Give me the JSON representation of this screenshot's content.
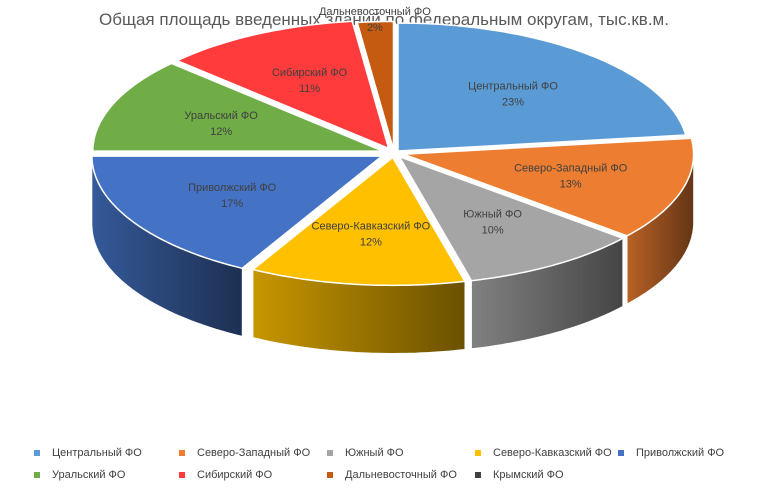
{
  "chart_data": {
    "type": "pie",
    "title": "Общая площадь введенных зданий по федеральным округам, тыс.кв.м.",
    "slices": [
      {
        "name": "Центральный ФО",
        "percent": 23,
        "label_pct": "23%",
        "color": "#5B9BD5"
      },
      {
        "name": "Северо-Западный ФО",
        "percent": 13,
        "label_pct": "13%",
        "color": "#ED7D31"
      },
      {
        "name": "Южный ФО",
        "percent": 10,
        "label_pct": "10%",
        "color": "#A5A5A5"
      },
      {
        "name": "Северо-Кавказский ФО",
        "percent": 12,
        "label_pct": "12%",
        "color": "#FFC000"
      },
      {
        "name": "Приволжский ФО",
        "percent": 17,
        "label_pct": "17%",
        "color": "#4472C4"
      },
      {
        "name": "Уральский ФО",
        "percent": 12,
        "label_pct": "12%",
        "color": "#70AD47"
      },
      {
        "name": "Сибирский ФО",
        "percent": 11,
        "label_pct": "11%",
        "color": "#FF3B3B"
      },
      {
        "name": "Дальневосточный ФО",
        "percent": 2,
        "label_pct": "2%",
        "color": "#C55A11"
      },
      {
        "name": "Крымский ФО",
        "percent": 0,
        "label_pct": "",
        "color": "#404040"
      }
    ],
    "legend_position": "bottom"
  }
}
